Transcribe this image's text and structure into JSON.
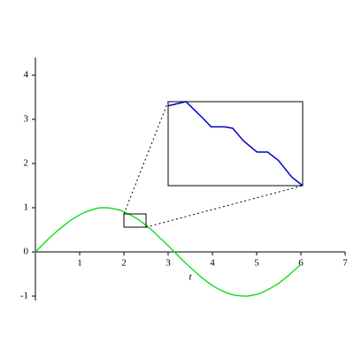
{
  "chart_data": {
    "type": "line",
    "xlabel": "t",
    "xlim": [
      0,
      7
    ],
    "ylim": [
      -1.1,
      4.4
    ],
    "xticks": [
      1,
      2,
      3,
      4,
      5,
      6,
      7
    ],
    "yticks": [
      -1,
      0,
      1,
      2,
      3,
      4
    ],
    "series": [
      {
        "color": "#22dd22",
        "x": [
          0,
          0.1,
          0.2,
          0.3,
          0.4,
          0.5,
          0.6,
          0.7,
          0.8,
          0.9,
          1,
          1.1,
          1.2,
          1.3,
          1.4,
          1.5,
          1.6,
          1.7,
          1.8,
          1.9,
          2,
          2.1,
          2.2,
          2.3,
          2.4,
          2.5,
          2.6,
          2.7,
          2.8,
          2.9,
          3,
          3.1,
          3.2,
          3.3,
          3.4,
          3.5,
          3.6,
          3.7,
          3.8,
          3.9,
          4,
          4.1,
          4.2,
          4.3,
          4.4,
          4.5,
          4.6,
          4.7,
          4.8,
          4.9,
          5,
          5.1,
          5.2,
          5.3,
          5.4,
          5.5,
          5.6,
          5.7,
          5.8,
          5.9,
          6
        ],
        "values": [
          0,
          0.1,
          0.2,
          0.3,
          0.39,
          0.48,
          0.56,
          0.64,
          0.72,
          0.78,
          0.84,
          0.89,
          0.93,
          0.96,
          0.99,
          1,
          1,
          0.99,
          0.97,
          0.95,
          0.91,
          0.86,
          0.81,
          0.75,
          0.68,
          0.6,
          0.52,
          0.43,
          0.33,
          0.24,
          0.14,
          0.04,
          -0.06,
          -0.16,
          -0.26,
          -0.35,
          -0.44,
          -0.53,
          -0.61,
          -0.69,
          -0.76,
          -0.82,
          -0.87,
          -0.92,
          -0.95,
          -0.98,
          -0.99,
          -1,
          -1,
          -0.98,
          -0.96,
          -0.93,
          -0.88,
          -0.83,
          -0.77,
          -0.71,
          -0.63,
          -0.55,
          -0.46,
          -0.37,
          -0.28
        ]
      }
    ],
    "inset": {
      "color": "#0000cc",
      "xlim": [
        2,
        2.5
      ],
      "ylim": [
        0.56,
        0.86
      ],
      "x": [
        2,
        2.066,
        2.13,
        2.16,
        2.21,
        2.24,
        2.28,
        2.33,
        2.37,
        2.41,
        2.46,
        2.5
      ],
      "values": [
        0.845,
        0.86,
        0.8,
        0.77,
        0.77,
        0.765,
        0.72,
        0.68,
        0.68,
        0.65,
        0.59,
        0.56
      ]
    }
  }
}
